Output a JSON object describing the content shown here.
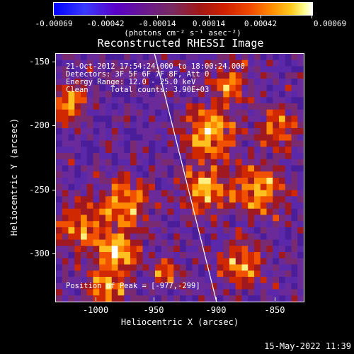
{
  "colorbar": {
    "ticks": [
      "-0.00069",
      "-0.00042",
      "-0.00014",
      "0.00014",
      "0.00042",
      "0.00069"
    ],
    "unit": "(photons cm⁻² s⁻¹ asec⁻²)"
  },
  "title": "Reconstructed RHESSI Image",
  "info": {
    "line1": "21-Oct-2012 17:54:24.000 to 18:00:24.000",
    "line2": "Detectors: 3F 5F 6F 7F 8F, Att 0",
    "line3": "Energy Range: 12.0 - 25.0 keV",
    "line4": "Clean     Total counts: 3.90E+03",
    "peak": "Position of Peak = [-977,-299]"
  },
  "axes": {
    "xlabel": "Heliocentric X (arcsec)",
    "ylabel": "Heliocentric Y (arcsec)",
    "xticks": [
      "-1000",
      "-950",
      "-900",
      "-850"
    ],
    "yticks": [
      "-150",
      "-200",
      "-250",
      "-300"
    ]
  },
  "footer": {
    "timestamp": "15-May-2022 11:39"
  }
}
